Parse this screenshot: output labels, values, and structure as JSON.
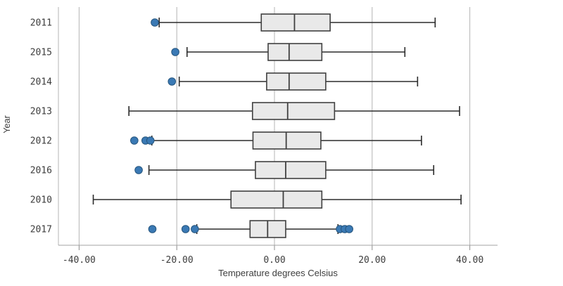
{
  "chart_data": {
    "type": "boxplot",
    "orientation": "horizontal",
    "title": "",
    "xlabel": "Temperature degrees Celsius",
    "ylabel": "Year",
    "xlim": [
      -44.2,
      45.7
    ],
    "grid": true,
    "x_ticks": [
      {
        "value": -40,
        "label": "-40.00"
      },
      {
        "value": -20,
        "label": "-20.00"
      },
      {
        "value": 0,
        "label": "0.00"
      },
      {
        "value": 20,
        "label": "20.00"
      },
      {
        "value": 40,
        "label": "40.00"
      }
    ],
    "rows": [
      {
        "year": "2011",
        "low": -23.6,
        "q1": -2.7,
        "median": 4.1,
        "q3": 11.4,
        "high": 32.9,
        "outliers_low": [
          -24.5
        ],
        "outliers_high": []
      },
      {
        "year": "2015",
        "low": -17.9,
        "q1": -1.3,
        "median": 3.0,
        "q3": 9.7,
        "high": 26.7,
        "outliers_low": [
          -20.3
        ],
        "outliers_high": []
      },
      {
        "year": "2014",
        "low": -19.5,
        "q1": -1.6,
        "median": 3.0,
        "q3": 10.5,
        "high": 29.3,
        "outliers_low": [
          -21.0
        ],
        "outliers_high": []
      },
      {
        "year": "2013",
        "low": -29.8,
        "q1": -4.5,
        "median": 2.7,
        "q3": 12.3,
        "high": 37.9,
        "outliers_low": [],
        "outliers_high": []
      },
      {
        "year": "2012",
        "low": -25.1,
        "q1": -4.4,
        "median": 2.4,
        "q3": 9.5,
        "high": 30.1,
        "outliers_low": [
          -28.7,
          -26.4,
          -25.4
        ],
        "outliers_high": []
      },
      {
        "year": "2016",
        "low": -25.7,
        "q1": -3.9,
        "median": 2.3,
        "q3": 10.5,
        "high": 32.6,
        "outliers_low": [
          -27.8
        ],
        "outliers_high": []
      },
      {
        "year": "2010",
        "low": -37.1,
        "q1": -8.9,
        "median": 1.8,
        "q3": 9.7,
        "high": 38.2,
        "outliers_low": [],
        "outliers_high": []
      },
      {
        "year": "2017",
        "low": -15.9,
        "q1": -5.0,
        "median": -1.4,
        "q3": 2.3,
        "high": 13.0,
        "outliers_low": [
          -25.0,
          -18.2,
          -16.3
        ],
        "outliers_high": [
          13.4,
          14.4,
          15.3
        ]
      }
    ],
    "colors": {
      "box_fill": "#e9e9e9",
      "box_stroke": "#404040",
      "whisker": "#2b2b2b",
      "outlier_fill": "#3a79b4",
      "outlier_stroke": "#27567e",
      "gridline": "#b4b4b4",
      "axis_line": "#a3a3a3",
      "tick_mark": "#8c8c8c",
      "text": "#3d3d3d"
    }
  }
}
